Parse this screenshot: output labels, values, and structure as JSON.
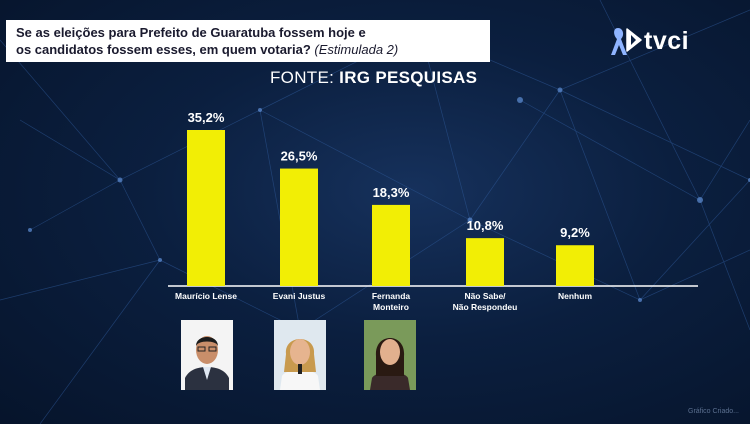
{
  "header": {
    "question_line1": "Se as eleições para Prefeito de Guaratuba fossem hoje e",
    "question_line2": "os candidatos fossem esses, em quem votaria?",
    "question_note": "(Estimulada 2)"
  },
  "source": {
    "prefix": "FONTE:",
    "name": "IRG PESQUISAS"
  },
  "logo": {
    "text": "tvci",
    "icon": "ribbon-play-icon"
  },
  "watermark": "Gráfico Criado...",
  "colors": {
    "bar": "#f2ee05",
    "background": "#0b1f3f",
    "axis": "#ffffff",
    "text": "#ffffff"
  },
  "chart_data": {
    "type": "bar",
    "categories": [
      "Maurício Lense",
      "Evani Justus",
      "Fernanda Monteiro",
      "Não Sabe/ Não Respondeu",
      "Nenhum"
    ],
    "category_lines": [
      [
        "Maurício Lense"
      ],
      [
        "Evani Justus"
      ],
      [
        "Fernanda",
        "Monteiro"
      ],
      [
        "Não Sabe/",
        "Não Respondeu"
      ],
      [
        "Nenhum"
      ]
    ],
    "values": [
      35.2,
      26.5,
      18.3,
      10.8,
      9.2
    ],
    "value_labels": [
      "35,2%",
      "26,5%",
      "18,3%",
      "10,8%",
      "9,2%"
    ],
    "title": "",
    "xlabel": "",
    "ylabel": "",
    "ylim": [
      0,
      35.2
    ],
    "grid": false,
    "legend": "none"
  },
  "photos": [
    {
      "candidate": "Maurício Lense",
      "icon": "candidate-photo-icon"
    },
    {
      "candidate": "Evani Justus",
      "icon": "candidate-photo-icon"
    },
    {
      "candidate": "Fernanda Monteiro",
      "icon": "candidate-photo-icon"
    }
  ]
}
